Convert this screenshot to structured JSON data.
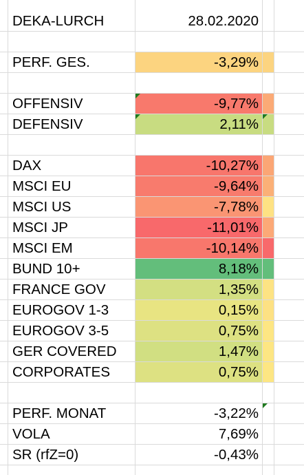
{
  "rows": [
    {
      "label": "DEKA-LURCH",
      "value": "28.02.2020",
      "bg": "",
      "side": "",
      "flag": false,
      "sideflag": false
    },
    {
      "label": "",
      "value": "",
      "bg": "",
      "side": "",
      "flag": false,
      "sideflag": false
    },
    {
      "label": "PERF. GES.",
      "value": "-3,29%",
      "bg": "#fcd480",
      "side": "#fcd480",
      "flag": false,
      "sideflag": false
    },
    {
      "label": "",
      "value": "",
      "bg": "",
      "side": "",
      "flag": false,
      "sideflag": false
    },
    {
      "label": "OFFENSIV",
      "value": "-9,77%",
      "bg": "#f8796c",
      "side": "#fbaa76",
      "flag": true,
      "sideflag": false
    },
    {
      "label": "DEFENSIV",
      "value": "2,11%",
      "bg": "#c8dc81",
      "side": "#c8dc81",
      "flag": true,
      "sideflag": true
    },
    {
      "label": "",
      "value": "",
      "bg": "",
      "side": "",
      "flag": false,
      "sideflag": false
    },
    {
      "label": "DAX",
      "value": "-10,27%",
      "bg": "#f8766c",
      "side": "#fba675",
      "flag": false,
      "sideflag": false
    },
    {
      "label": "MSCI EU",
      "value": "-9,64%",
      "bg": "#f87b6d",
      "side": "#fbb077",
      "flag": false,
      "sideflag": false
    },
    {
      "label": "MSCI US",
      "value": "-7,78%",
      "bg": "#fa9573",
      "side": "#fee283",
      "flag": false,
      "sideflag": false
    },
    {
      "label": "MSCI JP",
      "value": "-11,01%",
      "bg": "#f8696b",
      "side": "#fca977",
      "flag": false,
      "sideflag": false
    },
    {
      "label": "MSCI EM",
      "value": "-10,14%",
      "bg": "#f8776c",
      "side": "#f8696b",
      "flag": false,
      "sideflag": false
    },
    {
      "label": "BUND 10+",
      "value": "8,18%",
      "bg": "#63be7b",
      "side": "#63be7b",
      "flag": false,
      "sideflag": false
    },
    {
      "label": "FRANCE GOV",
      "value": "1,35%",
      "bg": "#d3df82",
      "side": "#fde383",
      "flag": false,
      "sideflag": false
    },
    {
      "label": "EUROGOV 1-3",
      "value": "0,15%",
      "bg": "#e8e482",
      "side": "#fde183",
      "flag": false,
      "sideflag": false
    },
    {
      "label": "EUROGOV 3-5",
      "value": "0,75%",
      "bg": "#dde182",
      "side": "#fde683",
      "flag": false,
      "sideflag": false
    },
    {
      "label": "GER COVERED",
      "value": "1,47%",
      "bg": "#d1df82",
      "side": "#fde683",
      "flag": false,
      "sideflag": false
    },
    {
      "label": "CORPORATES",
      "value": "0,75%",
      "bg": "#dde182",
      "side": "#fde683",
      "flag": false,
      "sideflag": false
    },
    {
      "label": "",
      "value": "",
      "bg": "",
      "side": "",
      "flag": false,
      "sideflag": false
    },
    {
      "label": "PERF. MONAT",
      "value": "-3,22%",
      "bg": "",
      "side": "",
      "flag": false,
      "sideflag": true
    },
    {
      "label": "VOLA",
      "value": "7,69%",
      "bg": "",
      "side": "",
      "flag": false,
      "sideflag": false
    },
    {
      "label": "SR (rfZ=0)",
      "value": "-0,43%",
      "bg": "",
      "side": "",
      "flag": false,
      "sideflag": false
    }
  ]
}
